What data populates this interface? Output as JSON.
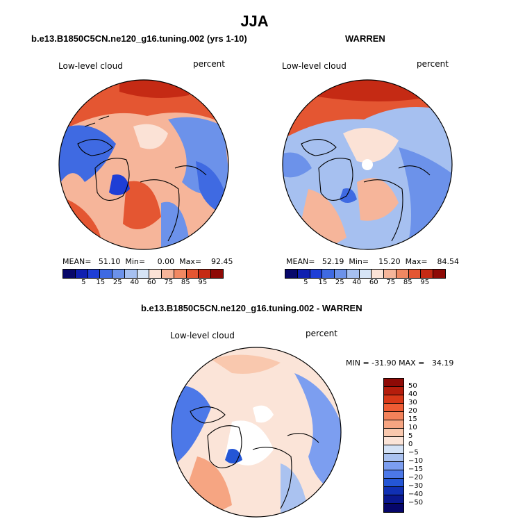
{
  "figure": {
    "title": "JJA"
  },
  "panels": {
    "left": {
      "title": "b.e13.B1850C5CN.ne120_g16.tuning.002 (yrs 1-10)",
      "variable": "Low-level cloud",
      "units": "percent",
      "stats": "MEAN=   51.10  Min=     0.00  Max=    92.45"
    },
    "right": {
      "title": "WARREN",
      "variable": "Low-level cloud",
      "units": "percent",
      "stats": "MEAN=   52.19  Min=    15.20  Max=    84.54"
    },
    "diff": {
      "title": "b.e13.B1850C5CN.ne120_g16.tuning.002 - WARREN",
      "variable": "Low-level cloud",
      "units": "percent",
      "stats": "MIN = -31.90 MAX =   34.19"
    }
  },
  "colorbar_abs": {
    "labels": [
      "5",
      "15",
      "25",
      "40",
      "60",
      "75",
      "85",
      "95"
    ],
    "colors": [
      "#08086a",
      "#1020b0",
      "#1e3ed6",
      "#3f6ae2",
      "#6c92ea",
      "#a6c0f0",
      "#d6e4f6",
      "#fbe2d6",
      "#f6b59a",
      "#f08862",
      "#e45632",
      "#c52a14",
      "#8e0a06"
    ]
  },
  "colorbar_diff": {
    "labels": [
      "50",
      "40",
      "30",
      "20",
      "15",
      "10",
      "5",
      "0",
      "-5",
      "-10",
      "-15",
      "-20",
      "-30",
      "-40",
      "-50"
    ],
    "colors": [
      "#8e0a06",
      "#b51d0c",
      "#d83818",
      "#ee5c34",
      "#f3825a",
      "#f6a582",
      "#f9c8ae",
      "#fbe4d8",
      "#d4e2f6",
      "#aac2f0",
      "#7c9ef0",
      "#4c78e8",
      "#2456d6",
      "#1030b4",
      "#0a1890",
      "#06066a"
    ]
  }
}
